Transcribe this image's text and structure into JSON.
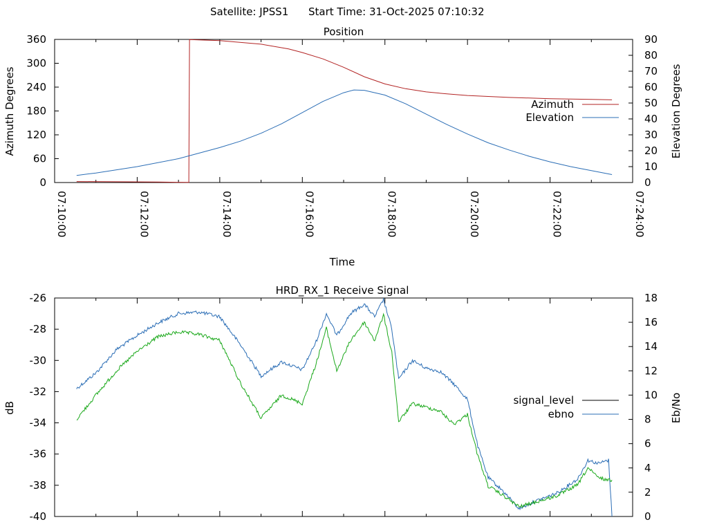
{
  "header": {
    "satellite": "Satellite: JPSS1",
    "start_time": "Start Time: 31-Oct-2025 07:10:32"
  },
  "chart_data": [
    {
      "type": "line",
      "title": "Position",
      "xlabel": "Time",
      "ylabel": "Azimuth Degrees",
      "y2label": "Elevation Degrees",
      "xlim": [
        "07:10:00",
        "07:24:00"
      ],
      "ylim": [
        0,
        360
      ],
      "y2lim": [
        0,
        90
      ],
      "x_ticks": [
        "07:10:00",
        "07:12:00",
        "07:14:00",
        "07:16:00",
        "07:18:00",
        "07:20:00",
        "07:22:00",
        "07:24:00"
      ],
      "y_ticks": [
        "0",
        "60",
        "120",
        "180",
        "240",
        "300",
        "360"
      ],
      "y2_ticks": [
        "0",
        "10",
        "20",
        "30",
        "40",
        "50",
        "60",
        "70",
        "80",
        "90"
      ],
      "legend_position": "right",
      "grid": false,
      "series": [
        {
          "name": "Azimuth",
          "axis": "y",
          "color": "#b22222",
          "points": [
            [
              "07:10:32",
              2.5
            ],
            [
              "07:11:30",
              2.0
            ],
            [
              "07:12:30",
              1.2
            ],
            [
              "07:13:15",
              0.3
            ],
            [
              "07:13:16",
              359.5
            ],
            [
              "07:14:00",
              357
            ],
            [
              "07:15:00",
              348
            ],
            [
              "07:15:40",
              336
            ],
            [
              "07:16:00",
              327
            ],
            [
              "07:16:30",
              311
            ],
            [
              "07:17:00",
              290
            ],
            [
              "07:17:30",
              266
            ],
            [
              "07:18:00",
              248
            ],
            [
              "07:18:30",
              236
            ],
            [
              "07:19:00",
              228
            ],
            [
              "07:19:30",
              223
            ],
            [
              "07:20:00",
              219
            ],
            [
              "07:21:00",
              214
            ],
            [
              "07:22:00",
              211
            ],
            [
              "07:23:00",
              209
            ],
            [
              "07:23:30",
              208
            ]
          ]
        },
        {
          "name": "Elevation",
          "axis": "y2",
          "color": "#2a6db5",
          "points": [
            [
              "07:10:32",
              4.5
            ],
            [
              "07:11:00",
              6
            ],
            [
              "07:12:00",
              10
            ],
            [
              "07:13:00",
              15
            ],
            [
              "07:14:00",
              22
            ],
            [
              "07:14:30",
              26
            ],
            [
              "07:15:00",
              31
            ],
            [
              "07:15:30",
              37
            ],
            [
              "07:16:00",
              44
            ],
            [
              "07:16:30",
              51
            ],
            [
              "07:17:00",
              56.5
            ],
            [
              "07:17:15",
              58.2
            ],
            [
              "07:17:30",
              58
            ],
            [
              "07:18:00",
              55
            ],
            [
              "07:18:30",
              49.5
            ],
            [
              "07:19:00",
              43
            ],
            [
              "07:19:30",
              36.5
            ],
            [
              "07:20:00",
              30.5
            ],
            [
              "07:20:30",
              25
            ],
            [
              "07:21:00",
              20.5
            ],
            [
              "07:21:30",
              16.5
            ],
            [
              "07:22:00",
              13
            ],
            [
              "07:22:30",
              10
            ],
            [
              "07:23:00",
              7.5
            ],
            [
              "07:23:30",
              5
            ]
          ]
        }
      ]
    },
    {
      "type": "line",
      "title": "HRD_RX_1 Receive Signal",
      "ylabel": "dB",
      "y2label": "Eb/No",
      "xlim": [
        "07:10:00",
        "07:24:00"
      ],
      "ylim": [
        -40,
        -26
      ],
      "y2lim": [
        0,
        18
      ],
      "y_ticks": [
        "-26",
        "-28",
        "-30",
        "-32",
        "-34",
        "-36",
        "-38",
        "-40"
      ],
      "y2_ticks": [
        "0",
        "2",
        "4",
        "6",
        "8",
        "10",
        "12",
        "14",
        "16",
        "18"
      ],
      "legend_position": "right",
      "grid": false,
      "series": [
        {
          "name": "signal_level",
          "axis": "y",
          "color": "#000000",
          "legend_color": "#000000",
          "draw_color": "#2a6db5",
          "points": [
            [
              "07:10:32",
              -31.8
            ],
            [
              "07:11:00",
              -30.8
            ],
            [
              "07:11:30",
              -29.3
            ],
            [
              "07:12:00",
              -28.4
            ],
            [
              "07:12:30",
              -27.6
            ],
            [
              "07:13:00",
              -27.0
            ],
            [
              "07:13:30",
              -26.9
            ],
            [
              "07:14:00",
              -27.2
            ],
            [
              "07:14:30",
              -29.0
            ],
            [
              "07:15:00",
              -31.0
            ],
            [
              "07:15:30",
              -30.1
            ],
            [
              "07:16:00",
              -30.6
            ],
            [
              "07:16:20",
              -28.8
            ],
            [
              "07:16:35",
              -27.0
            ],
            [
              "07:16:50",
              -28.4
            ],
            [
              "07:17:10",
              -27.0
            ],
            [
              "07:17:30",
              -26.4
            ],
            [
              "07:17:45",
              -27.2
            ],
            [
              "07:17:58",
              -26.1
            ],
            [
              "07:18:10",
              -28.0
            ],
            [
              "07:18:20",
              -31.2
            ],
            [
              "07:18:40",
              -30.0
            ],
            [
              "07:19:00",
              -30.5
            ],
            [
              "07:19:20",
              -30.7
            ],
            [
              "07:19:40",
              -31.5
            ],
            [
              "07:20:00",
              -32.5
            ],
            [
              "07:20:15",
              -35.5
            ],
            [
              "07:20:30",
              -37.5
            ],
            [
              "07:20:50",
              -38.3
            ],
            [
              "07:21:15",
              -39.5
            ],
            [
              "07:21:40",
              -39.0
            ],
            [
              "07:22:10",
              -38.5
            ],
            [
              "07:22:40",
              -37.6
            ],
            [
              "07:22:55",
              -36.4
            ],
            [
              "07:23:10",
              -36.6
            ],
            [
              "07:23:25",
              -36.4
            ],
            [
              "07:23:30",
              -40.0
            ]
          ]
        },
        {
          "name": "ebno",
          "axis": "y2",
          "color": "#2a6db5",
          "legend_color": "#2a6db5",
          "draw_color": "#1aa81a",
          "points": [
            [
              "07:10:32",
              8.0
            ],
            [
              "07:11:00",
              10.0
            ],
            [
              "07:11:30",
              12.0
            ],
            [
              "07:12:00",
              13.6
            ],
            [
              "07:12:30",
              14.8
            ],
            [
              "07:13:00",
              15.2
            ],
            [
              "07:13:30",
              15.0
            ],
            [
              "07:14:00",
              14.5
            ],
            [
              "07:14:30",
              11.0
            ],
            [
              "07:15:00",
              8.1
            ],
            [
              "07:15:30",
              10.0
            ],
            [
              "07:16:00",
              9.3
            ],
            [
              "07:16:20",
              12.6
            ],
            [
              "07:16:35",
              15.5
            ],
            [
              "07:16:50",
              12.0
            ],
            [
              "07:17:10",
              14.5
            ],
            [
              "07:17:30",
              16.0
            ],
            [
              "07:17:45",
              14.5
            ],
            [
              "07:17:58",
              16.6
            ],
            [
              "07:18:10",
              13.5
            ],
            [
              "07:18:20",
              7.8
            ],
            [
              "07:18:40",
              9.3
            ],
            [
              "07:19:00",
              9.0
            ],
            [
              "07:19:20",
              8.7
            ],
            [
              "07:19:40",
              7.6
            ],
            [
              "07:20:00",
              8.4
            ],
            [
              "07:20:15",
              5.0
            ],
            [
              "07:20:30",
              2.5
            ],
            [
              "07:20:50",
              1.8
            ],
            [
              "07:21:15",
              0.8
            ],
            [
              "07:21:40",
              1.2
            ],
            [
              "07:22:10",
              1.7
            ],
            [
              "07:22:40",
              2.6
            ],
            [
              "07:22:55",
              4.0
            ],
            [
              "07:23:10",
              3.2
            ],
            [
              "07:23:25",
              3.0
            ],
            [
              "07:23:30",
              3.0
            ]
          ]
        }
      ]
    }
  ]
}
